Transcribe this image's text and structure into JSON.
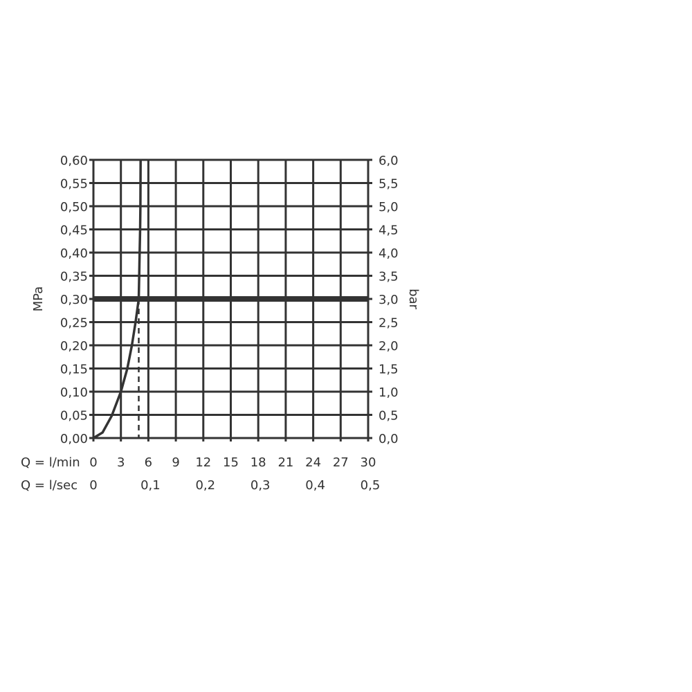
{
  "chart_data": {
    "type": "line",
    "xlabel": "Q = l/min",
    "xlabel_secondary": "Q = l/sec",
    "ylabel": "MPa",
    "ylabel_right": "bar",
    "xlim": [
      0,
      30
    ],
    "ylim": [
      0,
      0.6
    ],
    "grid": true,
    "x_ticks": [
      "0",
      "3",
      "6",
      "9",
      "12",
      "15",
      "18",
      "21",
      "24",
      "27",
      "30"
    ],
    "x_ticks_secondary": [
      {
        "value": 0,
        "label": "0"
      },
      {
        "value": 6,
        "label": "0,1"
      },
      {
        "value": 12,
        "label": "0,2"
      },
      {
        "value": 18,
        "label": "0,3"
      },
      {
        "value": 24,
        "label": "0,4"
      },
      {
        "value": 30,
        "label": "0,5"
      }
    ],
    "y_ticks": [
      "0,00",
      "0,05",
      "0,10",
      "0,15",
      "0,20",
      "0,25",
      "0,30",
      "0,35",
      "0,40",
      "0,45",
      "0,50",
      "0,55",
      "0,60"
    ],
    "y_ticks_right": [
      "0,0",
      "0,5",
      "1,0",
      "1,5",
      "2,0",
      "2,5",
      "3,0",
      "3,5",
      "4,0",
      "4,5",
      "5,0",
      "5,5",
      "6,0"
    ],
    "series": [
      {
        "x": [
          0,
          1,
          2,
          3,
          3.7,
          4.2,
          4.6,
          4.95,
          5.05,
          5.1,
          5.13,
          5.15
        ],
        "y": [
          0,
          0.012,
          0.048,
          0.1,
          0.15,
          0.2,
          0.25,
          0.3,
          0.4,
          0.45,
          0.5,
          0.6
        ]
      }
    ],
    "reference_line_y": 0.3,
    "reference_drop_x": 4.95,
    "color": "#333333"
  }
}
